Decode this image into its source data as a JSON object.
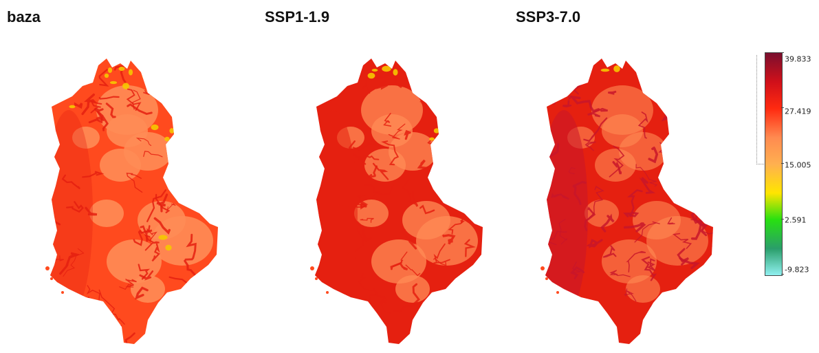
{
  "panels": [
    {
      "title": "baza",
      "variant": "base"
    },
    {
      "title": "SSP1-1.9",
      "variant": "ssp119"
    },
    {
      "title": "SSP3-7.0",
      "variant": "ssp370"
    }
  ],
  "legend": {
    "labels": [
      "39.833",
      "27.419",
      "15.005",
      "2.591",
      "-9.823"
    ],
    "colors": [
      "#7a0f2e",
      "#d0101a",
      "#ff2a10",
      "#ff8a50",
      "#ffb050",
      "#ffe500",
      "#28e010",
      "#2a9e6a",
      "#90f0f0"
    ]
  },
  "colors": {
    "light": "#ff8c55",
    "mid": "#ff4a1e",
    "dark": "#e52010",
    "deep": "#c8162a",
    "yellow": "#f5c800"
  }
}
